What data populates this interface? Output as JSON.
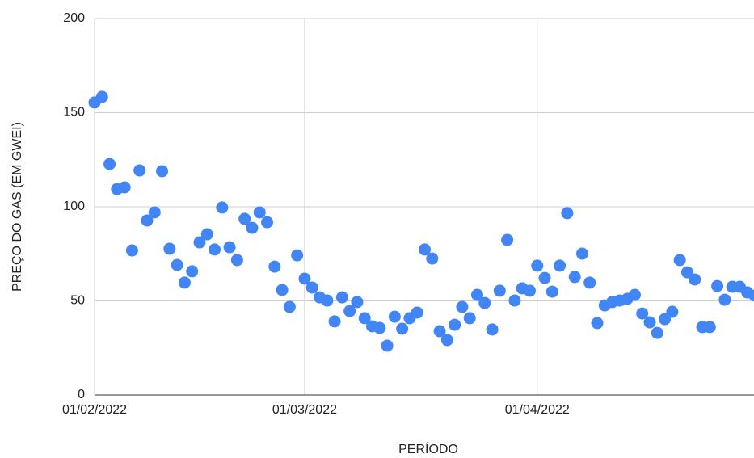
{
  "chart_data": {
    "type": "scatter",
    "x_label": "PERÍODO",
    "y_label": "PREÇO DO GAS (EM GWEI)",
    "color": "#4285f4",
    "grid": true,
    "x": [
      "2022-02-01",
      "2022-02-02",
      "2022-02-03",
      "2022-02-04",
      "2022-02-05",
      "2022-02-06",
      "2022-02-07",
      "2022-02-08",
      "2022-02-09",
      "2022-02-10",
      "2022-02-11",
      "2022-02-12",
      "2022-02-13",
      "2022-02-14",
      "2022-02-15",
      "2022-02-16",
      "2022-02-17",
      "2022-02-18",
      "2022-02-19",
      "2022-02-20",
      "2022-02-21",
      "2022-02-22",
      "2022-02-23",
      "2022-02-24",
      "2022-02-25",
      "2022-02-26",
      "2022-02-27",
      "2022-02-28",
      "2022-03-01",
      "2022-03-02",
      "2022-03-03",
      "2022-03-04",
      "2022-03-05",
      "2022-03-06",
      "2022-03-07",
      "2022-03-08",
      "2022-03-09",
      "2022-03-10",
      "2022-03-11",
      "2022-03-12",
      "2022-03-13",
      "2022-03-14",
      "2022-03-15",
      "2022-03-16",
      "2022-03-17",
      "2022-03-18",
      "2022-03-19",
      "2022-03-20",
      "2022-03-21",
      "2022-03-22",
      "2022-03-23",
      "2022-03-24",
      "2022-03-25",
      "2022-03-26",
      "2022-03-27",
      "2022-03-28",
      "2022-03-29",
      "2022-03-30",
      "2022-03-31",
      "2022-04-01",
      "2022-04-02",
      "2022-04-03",
      "2022-04-04",
      "2022-04-05",
      "2022-04-06",
      "2022-04-07",
      "2022-04-08",
      "2022-04-09",
      "2022-04-10",
      "2022-04-11",
      "2022-04-12",
      "2022-04-13",
      "2022-04-14",
      "2022-04-15",
      "2022-04-16",
      "2022-04-17",
      "2022-04-18",
      "2022-04-19",
      "2022-04-20",
      "2022-04-21",
      "2022-04-22",
      "2022-04-23",
      "2022-04-24",
      "2022-04-25",
      "2022-04-26",
      "2022-04-27",
      "2022-04-28",
      "2022-04-29",
      "2022-04-30"
    ],
    "values": [
      155.4,
      158.4,
      122.7,
      109.4,
      110.3,
      76.8,
      119.3,
      92.7,
      97.0,
      118.9,
      77.7,
      69.1,
      59.7,
      65.7,
      81.1,
      85.4,
      77.3,
      99.6,
      78.5,
      71.7,
      93.6,
      88.8,
      97.0,
      91.8,
      68.2,
      55.8,
      46.8,
      74.2,
      61.8,
      57.1,
      51.9,
      50.2,
      39.1,
      51.9,
      44.6,
      49.4,
      40.8,
      36.5,
      35.6,
      26.2,
      41.6,
      35.2,
      40.8,
      43.8,
      77.3,
      72.5,
      33.9,
      29.2,
      37.3,
      46.8,
      40.8,
      53.2,
      48.9,
      34.8,
      55.4,
      82.4,
      50.2,
      56.7,
      55.4,
      68.7,
      62.2,
      54.9,
      68.7,
      96.6,
      62.7,
      75.1,
      59.7,
      38.2,
      47.6,
      49.4,
      50.2,
      51.1,
      53.2,
      43.3,
      38.6,
      33.0,
      40.3,
      44.2,
      71.7,
      65.2,
      61.4,
      36.1,
      36.1,
      57.9,
      50.6,
      57.5,
      57.5,
      54.5,
      52.8
    ],
    "xlim": [
      "2022-02-01",
      "2022-04-30"
    ],
    "xticks": [
      {
        "value": "2022-02-01",
        "label": "01/02/2022"
      },
      {
        "value": "2022-03-01",
        "label": "01/03/2022"
      },
      {
        "value": "2022-04-01",
        "label": "01/04/2022"
      }
    ],
    "ylim": [
      0,
      200
    ],
    "yticks": [
      0,
      50,
      100,
      150,
      200
    ]
  }
}
